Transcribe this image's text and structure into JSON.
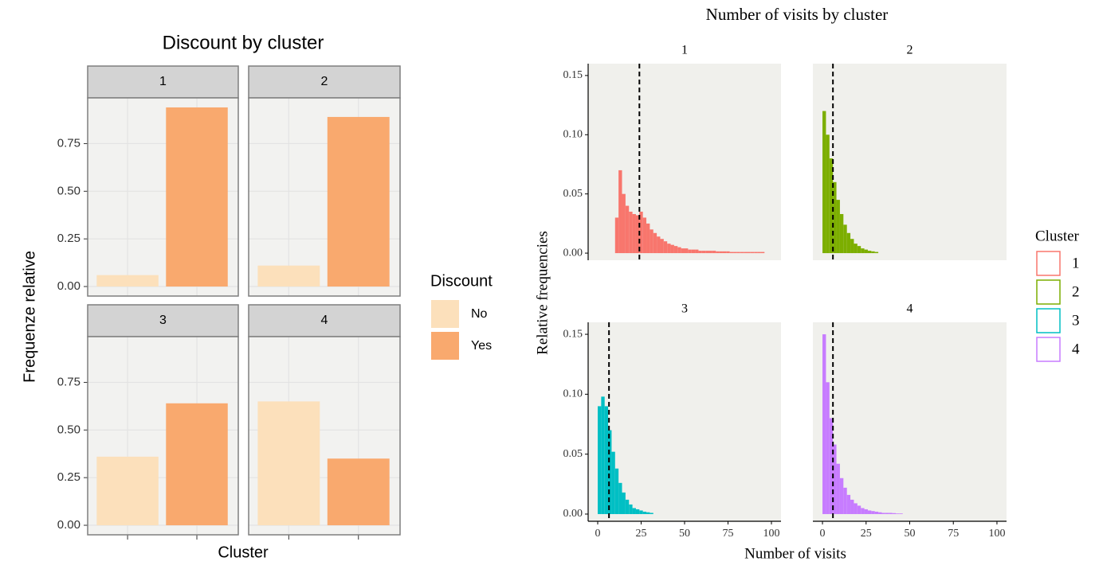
{
  "chart_data": [
    {
      "type": "bar",
      "title": "Discount by cluster",
      "xlabel": "Cluster",
      "ylabel": "Frequenze relative",
      "legend_title": "Discount",
      "facets": [
        "1",
        "2",
        "3",
        "4"
      ],
      "series": [
        {
          "name": "No",
          "color": "#fce0bb",
          "values": [
            0.06,
            0.11,
            0.36,
            0.65
          ]
        },
        {
          "name": "Yes",
          "color": "#f9a96e",
          "values": [
            0.94,
            0.89,
            0.64,
            0.35
          ]
        }
      ],
      "ylim": [
        -0.05,
        0.99
      ],
      "yticks": [
        {
          "value": 0,
          "label": "0.00"
        },
        {
          "value": 0.25,
          "label": "0.25"
        },
        {
          "value": 0.5,
          "label": "0.50"
        },
        {
          "value": 0.75,
          "label": "0.75"
        }
      ],
      "grid": true
    },
    {
      "type": "histogram",
      "title": "Number of visits by cluster",
      "xlabel": "Number of visits",
      "ylabel": "Relative frequencies",
      "legend_title": "Cluster",
      "series": [
        {
          "name": "1",
          "color": "#f8766d",
          "vline": 24,
          "bins": [
            10,
            12,
            14,
            16,
            18,
            20,
            22,
            24,
            26,
            28,
            30,
            32,
            34,
            36,
            38,
            40,
            42,
            44,
            46,
            48,
            50,
            52,
            54,
            56,
            58,
            60,
            62,
            64,
            66,
            68,
            70,
            72,
            74,
            76,
            78,
            80,
            82,
            84,
            86,
            88,
            90,
            92,
            94,
            96
          ],
          "counts": [
            0.03,
            0.07,
            0.05,
            0.04,
            0.035,
            0.033,
            0.032,
            0.035,
            0.03,
            0.025,
            0.02,
            0.017,
            0.014,
            0.012,
            0.01,
            0.008,
            0.007,
            0.006,
            0.005,
            0.004,
            0.004,
            0.003,
            0.003,
            0.003,
            0.002,
            0.002,
            0.002,
            0.002,
            0.002,
            0.0015,
            0.0015,
            0.0015,
            0.0015,
            0.001,
            0.001,
            0.001,
            0.001,
            0.001,
            0.001,
            0.001,
            0.001,
            0.001,
            0.001
          ]
        },
        {
          "name": "2",
          "color": "#7cae00",
          "vline": 6,
          "bins": [
            0,
            2,
            4,
            6,
            8,
            10,
            12,
            14,
            16,
            18,
            20,
            22,
            24,
            26,
            28,
            30,
            32
          ],
          "counts": [
            0.12,
            0.1,
            0.08,
            0.06,
            0.045,
            0.033,
            0.024,
            0.017,
            0.012,
            0.008,
            0.006,
            0.004,
            0.003,
            0.002,
            0.0015,
            0.001
          ]
        },
        {
          "name": "3",
          "color": "#00bfc4",
          "vline": 6.5,
          "bins": [
            0,
            2,
            4,
            6,
            8,
            10,
            12,
            14,
            16,
            18,
            20,
            22,
            24,
            26,
            28,
            30,
            32
          ],
          "counts": [
            0.09,
            0.098,
            0.09,
            0.07,
            0.052,
            0.038,
            0.026,
            0.018,
            0.012,
            0.008,
            0.005,
            0.004,
            0.003,
            0.002,
            0.0015,
            0.001
          ]
        },
        {
          "name": "4",
          "color": "#c77cff",
          "vline": 6,
          "bins": [
            0,
            2,
            4,
            6,
            8,
            10,
            12,
            14,
            16,
            18,
            20,
            22,
            24,
            26,
            28,
            30,
            32,
            34,
            36,
            38,
            40,
            42,
            44,
            46
          ],
          "counts": [
            0.15,
            0.11,
            0.08,
            0.058,
            0.042,
            0.03,
            0.022,
            0.016,
            0.012,
            0.009,
            0.007,
            0.005,
            0.004,
            0.003,
            0.0025,
            0.002,
            0.0015,
            0.001,
            0.001,
            0.001,
            0.0008,
            0.0005,
            0.0005
          ]
        }
      ],
      "xlim": [
        -5.5,
        105.5
      ],
      "xticks": [
        0,
        25,
        50,
        75,
        100
      ],
      "ylim": [
        -0.006,
        0.16
      ],
      "yticks": [
        {
          "value": 0,
          "label": "0.00"
        },
        {
          "value": 0.05,
          "label": "0.05"
        },
        {
          "value": 0.1,
          "label": "0.10"
        },
        {
          "value": 0.15,
          "label": "0.15"
        }
      ]
    }
  ]
}
